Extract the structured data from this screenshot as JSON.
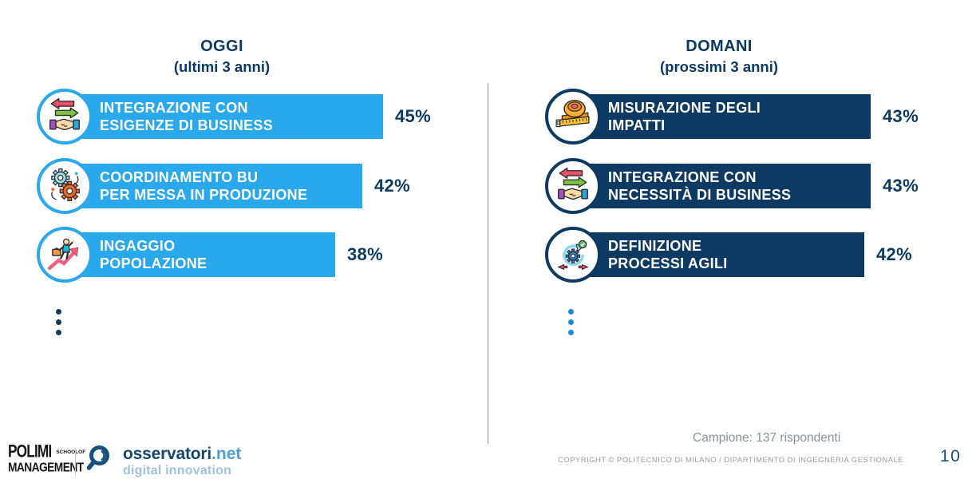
{
  "chart_data": [
    {
      "type": "bar",
      "title": "OGGI (ultimi 3 anni)",
      "categories": [
        "INTEGRAZIONE CON ESIGENZE DI BUSINESS",
        "COORDINAMENTO BU PER MESSA IN PRODUZIONE",
        "INGAGGIO POPOLAZIONE"
      ],
      "values": [
        45,
        42,
        38
      ],
      "unit": "%",
      "bar_color": "#29a8ec",
      "orientation": "horizontal",
      "note": "lista troncata (ellissi verticale sotto le barre)"
    },
    {
      "type": "bar",
      "title": "DOMANI (prossimi 3 anni)",
      "categories": [
        "MISURAZIONE DEGLI IMPATTI",
        "INTEGRAZIONE CON NECESSITÀ DI BUSINESS",
        "DEFINIZIONE PROCESSI AGILI"
      ],
      "values": [
        43,
        43,
        42
      ],
      "unit": "%",
      "bar_color": "#0d3a63",
      "orientation": "horizontal",
      "note": "lista troncata (ellissi verticale sotto le barre)"
    }
  ],
  "left": {
    "title_line1": "OGGI",
    "title_line2": "(ultimi 3 anni)",
    "items": [
      {
        "line1": "INTEGRAZIONE CON",
        "line2": "ESIGENZE DI BUSINESS",
        "value": 45,
        "pct": "45%",
        "icon": "handshake-arrows"
      },
      {
        "line1": "COORDINAMENTO BU",
        "line2": "PER MESSA IN PRODUZIONE",
        "value": 42,
        "pct": "42%",
        "icon": "gears"
      },
      {
        "line1": "INGAGGIO",
        "line2": "POPOLAZIONE",
        "value": 38,
        "pct": "38%",
        "icon": "career-growth"
      }
    ]
  },
  "right": {
    "title_line1": "DOMANI",
    "title_line2": "(prossimi 3 anni)",
    "items": [
      {
        "line1": "MISURAZIONE DEGLI",
        "line2": "IMPATTI",
        "value": 43,
        "pct": "43%",
        "icon": "measuring-tape"
      },
      {
        "line1": "INTEGRAZIONE CON",
        "line2": "NECESSITÀ DI BUSINESS",
        "value": 43,
        "pct": "43%",
        "icon": "handshake-arrows"
      },
      {
        "line1": "DEFINIZIONE",
        "line2": "PROCESSI AGILI",
        "value": 42,
        "pct": "42%",
        "icon": "agile-process"
      }
    ]
  },
  "footer": {
    "campione": "Campione: 137 rispondenti",
    "copyright": "COPYRIGHT © POLITECNICO DI MILANO / DIPARTIMENTO DI INGEGNERIA GESTIONALE",
    "page_number": "10",
    "polimi": {
      "line1": "POLIMI",
      "small": "SCHOOLOF",
      "line2": "MANAGEMENT"
    },
    "osservatori": {
      "name": "osservatori",
      "net": ".net",
      "tagline": "digital innovation"
    }
  },
  "colors": {
    "light_blue": "#29a8ec",
    "navy": "#0d3a63",
    "dot_left": "#14395e",
    "dot_right": "#1d8ad5",
    "footer_gray": "#9b9b9b"
  }
}
